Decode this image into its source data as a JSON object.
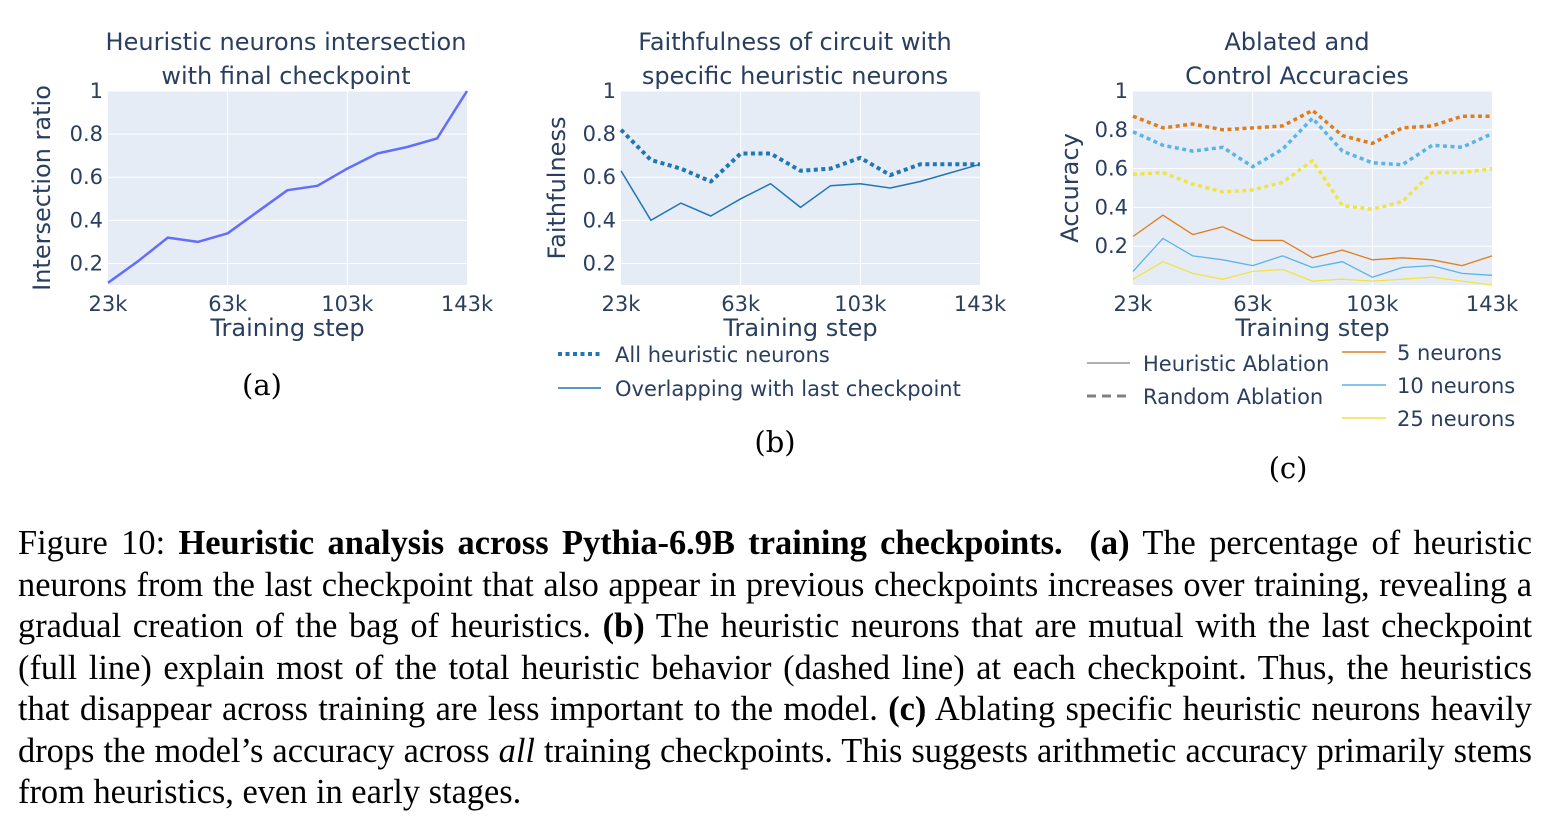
{
  "colors": {
    "panel_a": "#636efa",
    "panel_b": "#1f77b4",
    "five": "#e07d1a",
    "ten": "#5ab4e6",
    "twentyfive": "#f0e442",
    "legend_gray": "#808080",
    "plot_bg": "#e5ecf6",
    "grid": "#ffffff",
    "text": "#2a3f5f"
  },
  "chart_data": [
    {
      "id": "a",
      "type": "line",
      "panel_label": "(a)",
      "title": [
        "Heuristic neurons intersection",
        "with final checkpoint"
      ],
      "xlabel": "Training step",
      "ylabel": "Intersection ratio",
      "xlim": [
        23000,
        143000
      ],
      "ylim": [
        0.1,
        1
      ],
      "xticks": [
        23000,
        63000,
        103000,
        143000
      ],
      "xticklabels": [
        "23k",
        "63k",
        "103k",
        "143k"
      ],
      "yticks": [
        0.2,
        0.4,
        0.6,
        0.8,
        1
      ],
      "yticklabels": [
        "0.2",
        "0.4",
        "0.6",
        "0.8",
        "1"
      ],
      "grid": true,
      "series": [
        {
          "x": [
            23000,
            33000,
            43000,
            53000,
            63000,
            73000,
            83000,
            93000,
            103000,
            113000,
            123000,
            133000,
            143000
          ],
          "values": [
            0.11,
            0.21,
            0.32,
            0.3,
            0.34,
            0.44,
            0.54,
            0.56,
            0.64,
            0.71,
            0.74,
            0.78,
            1.0
          ],
          "color": "#636efa",
          "dash": "solid",
          "width": 2.5
        }
      ]
    },
    {
      "id": "b",
      "type": "line",
      "panel_label": "(b)",
      "title": [
        "Faithfulness of circuit with",
        "specific heuristic neurons"
      ],
      "xlabel": "Training step",
      "ylabel": "Faithfulness",
      "xlim": [
        23000,
        143000
      ],
      "ylim": [
        0.1,
        1
      ],
      "xticks": [
        23000,
        63000,
        103000,
        143000
      ],
      "xticklabels": [
        "23k",
        "63k",
        "103k",
        "143k"
      ],
      "yticks": [
        0.2,
        0.4,
        0.6,
        0.8,
        1
      ],
      "yticklabels": [
        "0.2",
        "0.4",
        "0.6",
        "0.8",
        "1"
      ],
      "grid": true,
      "legend_position": "bottom",
      "series": [
        {
          "name": "All heuristic neurons",
          "x": [
            23000,
            33000,
            43000,
            53000,
            63000,
            73000,
            83000,
            93000,
            103000,
            113000,
            123000,
            133000,
            143000
          ],
          "values": [
            0.82,
            0.68,
            0.64,
            0.58,
            0.71,
            0.71,
            0.63,
            0.64,
            0.69,
            0.61,
            0.66,
            0.66,
            0.66
          ],
          "color": "#1f77b4",
          "dash": "dot",
          "width": 4
        },
        {
          "name": "Overlapping with last checkpoint",
          "x": [
            23000,
            33000,
            43000,
            53000,
            63000,
            73000,
            83000,
            93000,
            103000,
            113000,
            123000,
            133000,
            143000
          ],
          "values": [
            0.63,
            0.4,
            0.48,
            0.42,
            0.5,
            0.57,
            0.46,
            0.56,
            0.57,
            0.55,
            0.58,
            0.62,
            0.66
          ],
          "color": "#1f77b4",
          "dash": "solid",
          "width": 1.5
        }
      ]
    },
    {
      "id": "c",
      "type": "line",
      "panel_label": "(c)",
      "title": [
        "Ablated and",
        "Control Accuracies"
      ],
      "xlabel": "Training step",
      "ylabel": "Accuracy",
      "xlim": [
        23000,
        143000
      ],
      "ylim": [
        0,
        1
      ],
      "xticks": [
        23000,
        63000,
        103000,
        143000
      ],
      "xticklabels": [
        "23k",
        "63k",
        "103k",
        "143k"
      ],
      "yticks": [
        0.2,
        0.4,
        0.6,
        0.8,
        1
      ],
      "yticklabels": [
        "0.2",
        "0.4",
        "0.6",
        "0.8",
        "1"
      ],
      "grid": true,
      "legend_position": "bottom",
      "legend_style": [
        {
          "name": "Heuristic Ablation",
          "dash": "solid"
        },
        {
          "name": "Random Ablation",
          "dash": "dash"
        }
      ],
      "legend_sizes": [
        {
          "name": "5 neurons",
          "color": "#e07d1a"
        },
        {
          "name": "10 neurons",
          "color": "#5ab4e6"
        },
        {
          "name": "25 neurons",
          "color": "#f0e442"
        }
      ],
      "series": [
        {
          "x": [
            23000,
            33000,
            43000,
            53000,
            63000,
            73000,
            83000,
            93000,
            103000,
            113000,
            123000,
            133000,
            143000
          ],
          "values": [
            0.87,
            0.81,
            0.83,
            0.8,
            0.81,
            0.82,
            0.9,
            0.77,
            0.73,
            0.81,
            0.82,
            0.87,
            0.87
          ],
          "color": "#e07d1a",
          "dash": "dot",
          "width": 3.5
        },
        {
          "x": [
            23000,
            33000,
            43000,
            53000,
            63000,
            73000,
            83000,
            93000,
            103000,
            113000,
            123000,
            133000,
            143000
          ],
          "values": [
            0.79,
            0.72,
            0.69,
            0.71,
            0.61,
            0.7,
            0.86,
            0.69,
            0.63,
            0.62,
            0.72,
            0.71,
            0.78
          ],
          "color": "#5ab4e6",
          "dash": "dot",
          "width": 3.5
        },
        {
          "x": [
            23000,
            33000,
            43000,
            53000,
            63000,
            73000,
            83000,
            93000,
            103000,
            113000,
            123000,
            133000,
            143000
          ],
          "values": [
            0.57,
            0.58,
            0.52,
            0.48,
            0.49,
            0.53,
            0.64,
            0.41,
            0.39,
            0.43,
            0.58,
            0.58,
            0.6
          ],
          "color": "#f0e442",
          "dash": "dot",
          "width": 3.5
        },
        {
          "x": [
            23000,
            33000,
            43000,
            53000,
            63000,
            73000,
            83000,
            93000,
            103000,
            113000,
            123000,
            133000,
            143000
          ],
          "values": [
            0.25,
            0.36,
            0.26,
            0.3,
            0.23,
            0.23,
            0.14,
            0.18,
            0.13,
            0.14,
            0.13,
            0.1,
            0.15
          ],
          "color": "#e07d1a",
          "dash": "solid",
          "width": 1.3
        },
        {
          "x": [
            23000,
            33000,
            43000,
            53000,
            63000,
            73000,
            83000,
            93000,
            103000,
            113000,
            123000,
            133000,
            143000
          ],
          "values": [
            0.07,
            0.24,
            0.15,
            0.13,
            0.1,
            0.15,
            0.09,
            0.12,
            0.04,
            0.09,
            0.1,
            0.06,
            0.05
          ],
          "color": "#5ab4e6",
          "dash": "solid",
          "width": 1.3
        },
        {
          "x": [
            23000,
            33000,
            43000,
            53000,
            63000,
            73000,
            83000,
            93000,
            103000,
            113000,
            123000,
            133000,
            143000
          ],
          "values": [
            0.03,
            0.12,
            0.06,
            0.03,
            0.07,
            0.08,
            0.02,
            0.03,
            0.02,
            0.03,
            0.04,
            0.02,
            0.0
          ],
          "color": "#f0e442",
          "dash": "solid",
          "width": 1.3
        }
      ]
    }
  ],
  "caption": {
    "prefix": "Figure 10: ",
    "bold_title": "Heuristic analysis across Pythia-6.9B training checkpoints.",
    "a_label": "(a)",
    "a_text": " The percentage of heuristic neurons from the last checkpoint that also appear in previous checkpoints increases over training, revealing a gradual creation of the bag of heuristics. ",
    "b_label": "(b)",
    "b_text": " The heuristic neurons that are mutual with the last checkpoint (full line) explain most of the total heuristic behavior (dashed line) at each checkpoint.  Thus, the heuristics that disappear across training are less important to the model. ",
    "c_label": "(c)",
    "c_text_1": " Ablating specific heuristic neurons heavily drops the model’s accuracy across ",
    "c_italic": "all",
    "c_text_2": " training checkpoints. This suggests arithmetic accuracy primarily stems from heuristics, even in early stages."
  }
}
